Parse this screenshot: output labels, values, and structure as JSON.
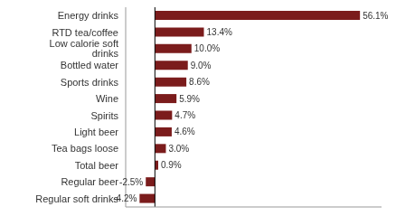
{
  "chart_data": {
    "type": "bar",
    "orientation": "horizontal",
    "categories": [
      "Regular soft drinks",
      "Regular beer",
      "Total beer",
      "Tea bags loose",
      "Light beer",
      "Spirits",
      "Wine",
      "Sports drinks",
      "Bottled water",
      "Low calorie soft drinks",
      "RTD tea/coffee",
      "Energy drinks"
    ],
    "values": [
      -4.2,
      -2.5,
      0.9,
      3.0,
      4.6,
      4.7,
      5.9,
      8.6,
      9.0,
      10.0,
      13.4,
      56.1
    ],
    "value_labels": [
      "-4.2%",
      "-2.5%",
      "0.9%",
      "3.0%",
      "4.6%",
      "4.7%",
      "5.9%",
      "8.6%",
      "9.0%",
      "10.0%",
      "13.4%",
      "56.1%"
    ],
    "data_labels": true,
    "color": "#7B1C1C",
    "xlim": [
      -8,
      62
    ],
    "grid": false,
    "tick_labels": "y"
  }
}
